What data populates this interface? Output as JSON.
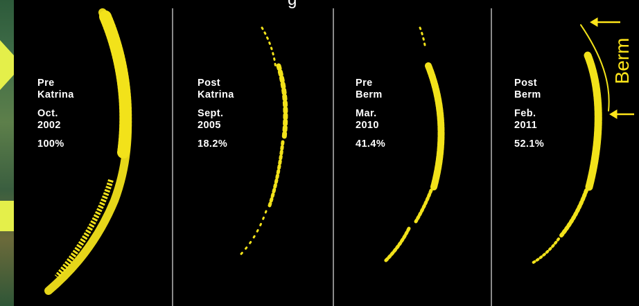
{
  "title_fragment": "g",
  "panels": [
    {
      "line1": "Pre",
      "line2": "Katrina",
      "month": "Oct.",
      "year": "2002",
      "percent": "100%"
    },
    {
      "line1": "Post",
      "line2": "Katrina",
      "month": "Sept.",
      "year": "2005",
      "percent": "18.2%"
    },
    {
      "line1": "Pre",
      "line2": "Berm",
      "month": "Mar.",
      "year": "2010",
      "percent": "41.4%"
    },
    {
      "line1": "Post",
      "line2": "Berm",
      "month": "Feb.",
      "year": "2011",
      "percent": "52.1%"
    }
  ],
  "annotation": {
    "label": "Berm"
  },
  "colors": {
    "background": "#000000",
    "vegetation": "#f2e21a",
    "divider": "#8a8a8a",
    "annotation": "#ffe51a",
    "text": "#ffffff"
  }
}
